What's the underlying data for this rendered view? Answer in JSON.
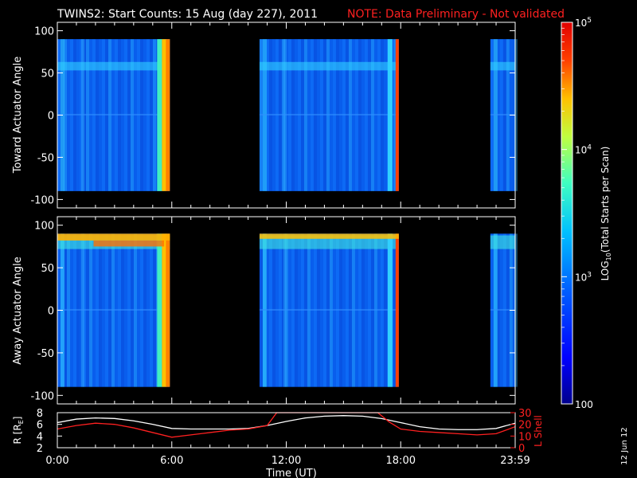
{
  "header": {
    "title": "TWINS2: Start Counts: 15 Aug (day 227), 2011",
    "note": "NOTE: Data Preliminary - Not validated"
  },
  "colorbar": {
    "label_main": "LOG",
    "label_sub": "10",
    "label_rest": "(Total Starts per Scan)",
    "ticks": [
      {
        "value": 100,
        "base": "100",
        "exp": ""
      },
      {
        "value": 1000,
        "base": "10",
        "exp": "3"
      },
      {
        "value": 10000,
        "base": "10",
        "exp": "4"
      },
      {
        "value": 100000,
        "base": "10",
        "exp": "5"
      }
    ],
    "colors": [
      "#00008c",
      "#0000ff",
      "#0060ff",
      "#00c0ff",
      "#40ffc0",
      "#c0ff40",
      "#ffc000",
      "#ff4000",
      "#e00000"
    ]
  },
  "side_stamp": "12 Jun 12",
  "chart_data": [
    {
      "type": "heatmap",
      "ylabel": "Toward Actuator Angle",
      "ylim": [
        -110,
        110
      ],
      "y_ticks": [
        -100,
        -50,
        0,
        50,
        100
      ],
      "x_hours": [
        0,
        24
      ],
      "coverage_hours": [
        [
          0,
          5.9
        ],
        [
          10.6,
          17.9
        ],
        [
          22.7,
          24
        ]
      ],
      "angle_range": [
        -90,
        90
      ],
      "color_scale": "log",
      "zlim": [
        100,
        100000
      ]
    },
    {
      "type": "heatmap",
      "ylabel": "Away Actuator Angle",
      "ylim": [
        -110,
        110
      ],
      "y_ticks": [
        -100,
        -50,
        0,
        50,
        100
      ],
      "x_hours": [
        0,
        24
      ],
      "coverage_hours": [
        [
          0,
          5.9
        ],
        [
          10.6,
          17.9
        ],
        [
          22.7,
          24
        ]
      ],
      "angle_range": [
        -90,
        90
      ],
      "color_scale": "log",
      "zlim": [
        100,
        100000
      ]
    },
    {
      "type": "line",
      "ylabel_left": "R [R",
      "ylabel_left_sub": "E",
      "ylabel_left_end": "]",
      "ylabel_right": "L Shell",
      "left_ticks": [
        "8",
        "6",
        "4",
        "2"
      ],
      "right_ticks": [
        "30",
        "20",
        "10",
        "0"
      ],
      "ylim_left": [
        2,
        8
      ],
      "ylim_right": [
        0,
        30
      ],
      "xlabel": "Time (UT)",
      "x_tick_labels": [
        "0:00",
        "6:00",
        "12:00",
        "18:00",
        "23:59"
      ],
      "x_tick_hours": [
        0,
        6,
        12,
        18,
        24
      ],
      "series": [
        {
          "key": "R",
          "color": "#ffffff",
          "x": [
            0,
            1,
            2,
            3,
            4,
            5,
            6,
            7,
            8,
            9,
            10,
            11,
            12,
            13,
            14,
            15,
            16,
            17,
            18,
            19,
            20,
            21,
            22,
            23,
            24
          ],
          "y": [
            6.3,
            6.9,
            7.1,
            7.0,
            6.6,
            6.0,
            5.3,
            5.2,
            5.2,
            5.2,
            5.3,
            5.8,
            6.5,
            7.1,
            7.4,
            7.5,
            7.4,
            7.0,
            6.3,
            5.6,
            5.2,
            5.1,
            5.1,
            5.3,
            6.2
          ]
        },
        {
          "key": "L",
          "color": "#ff2020",
          "x": [
            0,
            1,
            2,
            3,
            4,
            5,
            6,
            7,
            8,
            9,
            10,
            11,
            11.5,
            16.8,
            17.4,
            18,
            19,
            20,
            21,
            22,
            23,
            24
          ],
          "y": [
            16,
            19,
            21,
            20,
            17,
            13,
            9,
            11,
            13,
            15,
            16,
            19,
            30,
            30,
            22,
            16,
            14,
            13,
            12,
            11,
            12,
            18
          ]
        }
      ]
    }
  ]
}
